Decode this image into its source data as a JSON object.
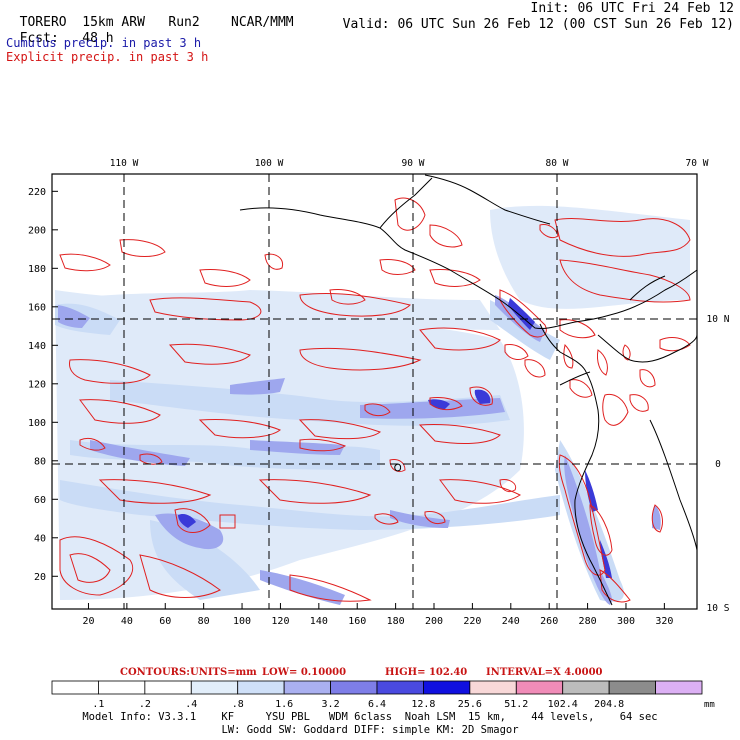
{
  "header": {
    "model": "TORERO",
    "resolution": "15km ARW",
    "run": "Run2",
    "org": "NCAR/MMM",
    "init": "Init: 06 UTC Fri 24 Feb 12",
    "fcst_label": "Fcst:",
    "fcst_value": "48 h",
    "valid": "Valid: 06 UTC Sun 26 Feb 12 (00 CST Sun 26 Feb 12)"
  },
  "legend_lines": {
    "cumulus": "Cumulus precip. in past 3 h",
    "explicit": "Explicit precip. in past 3 h"
  },
  "map": {
    "top_lon_labels": [
      "110 W",
      "100 W",
      "90 W",
      "80 W",
      "70 W"
    ],
    "right_lat_labels": [
      "10 N",
      "0",
      "10 S"
    ],
    "y_ticks": [
      "20",
      "40",
      "60",
      "80",
      "100",
      "120",
      "140",
      "160",
      "180",
      "200",
      "220"
    ],
    "x_ticks": [
      "20",
      "40",
      "60",
      "80",
      "100",
      "120",
      "140",
      "160",
      "180",
      "200",
      "220",
      "240",
      "260",
      "280",
      "300",
      "320"
    ]
  },
  "contours_line": {
    "label": "CONTOURS:",
    "units": "UNITS=mm",
    "low": "LOW= 0.10000",
    "high": "HIGH= 102.40",
    "interval": "INTERVAL=X 4.0000"
  },
  "colorbar": {
    "labels": [
      ".1",
      ".2",
      ".4",
      ".8",
      "1.6",
      "3.2",
      "6.4",
      "12.8",
      "25.6",
      "51.2",
      "102.4",
      "204.8"
    ],
    "unit": "mm",
    "colors": [
      "#ffffff",
      "#ffffff",
      "#ffffff",
      "#e2eefa",
      "#cfe0f8",
      "#aab0f0",
      "#7e7ee8",
      "#4a4ae0",
      "#1010e0",
      "#f8d8d8",
      "#f08cb8",
      "#bcbcbc",
      "#8c8c8c",
      "#dcb0f4"
    ]
  },
  "model_info": {
    "line1": "Model Info: V3.3.1    KF     YSU PBL   WDM 6class  Noah LSM  15 km,    44 levels,    64 sec",
    "line2": "LW: Godd SW: Goddard DIFF: simple KM: 2D Smagor"
  }
}
